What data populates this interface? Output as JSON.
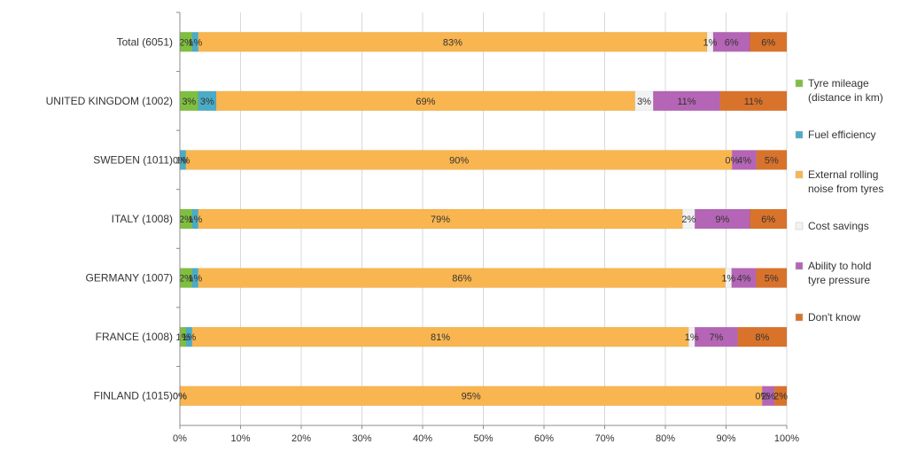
{
  "chart_data": {
    "type": "bar",
    "orientation": "horizontal",
    "stacked": "100%",
    "title": "",
    "xlabel": "",
    "ylabel": "",
    "xlim": [
      0,
      100
    ],
    "x_ticks": [
      "0%",
      "10%",
      "20%",
      "30%",
      "40%",
      "50%",
      "60%",
      "70%",
      "80%",
      "90%",
      "100%"
    ],
    "grid": true,
    "legend_position": "right",
    "categories": [
      "Total (6051)",
      "UNITED KINGDOM (1002)",
      "SWEDEN (1011)",
      "ITALY (1008)",
      "GERMANY (1007)",
      "FRANCE (1008)",
      "FINLAND (1015)"
    ],
    "series": [
      {
        "name": "Tyre mileage (distance in km)",
        "legend_lines": [
          "Tyre mileage",
          "(distance in km)"
        ],
        "color": "#7fbf3f",
        "values": [
          2,
          3,
          0,
          2,
          2,
          1,
          0
        ],
        "labels": [
          "2%",
          "3%",
          "0%",
          "2%",
          "2%",
          "1%",
          "0%"
        ]
      },
      {
        "name": "Fuel efficiency",
        "legend_lines": [
          "Fuel efficiency"
        ],
        "color": "#4bacc6",
        "values": [
          1,
          3,
          1,
          1,
          1,
          1,
          0
        ],
        "labels": [
          "1%",
          "3%",
          "1%",
          "1%",
          "1%",
          "1%",
          "0%"
        ]
      },
      {
        "name": "External rolling noise from tyres",
        "legend_lines": [
          "External rolling",
          "noise from tyres"
        ],
        "color": "#f9b54f",
        "values": [
          83,
          69,
          90,
          79,
          86,
          81,
          95
        ],
        "labels": [
          "83%",
          "69%",
          "90%",
          "79%",
          "86%",
          "81%",
          "95%"
        ]
      },
      {
        "name": "Cost savings",
        "legend_lines": [
          "Cost savings"
        ],
        "color": "#f2f2f2",
        "values": [
          1,
          3,
          0,
          2,
          1,
          1,
          0
        ],
        "labels": [
          "1%",
          "3%",
          "0%",
          "2%",
          "1%",
          "1%",
          "0%"
        ]
      },
      {
        "name": "Ability to hold tyre pressure",
        "legend_lines": [
          "Ability to hold",
          "tyre pressure"
        ],
        "color": "#b565b5",
        "values": [
          6,
          11,
          4,
          9,
          4,
          7,
          2
        ],
        "labels": [
          "6%",
          "11%",
          "4%",
          "9%",
          "4%",
          "7%",
          "2%"
        ]
      },
      {
        "name": "Don't know",
        "legend_lines": [
          "Don't know"
        ],
        "color": "#d9732b",
        "values": [
          6,
          11,
          5,
          6,
          5,
          8,
          2
        ],
        "labels": [
          "6%",
          "11%",
          "5%",
          "6%",
          "5%",
          "8%",
          "2%"
        ]
      }
    ]
  }
}
